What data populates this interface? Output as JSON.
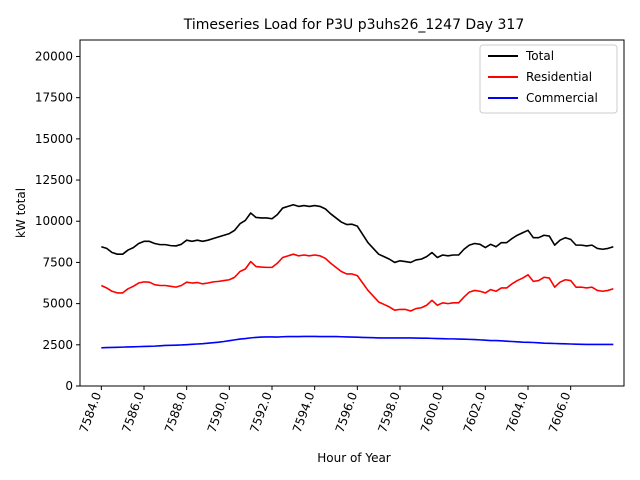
{
  "chart_data": {
    "type": "line",
    "title": "Timeseries Load for P3U p3uhs26_1247  Day 317",
    "xlabel": "Hour of Year",
    "ylabel": "kW total",
    "xlim": [
      7583,
      7608.5
    ],
    "ylim": [
      0,
      21000
    ],
    "xticks": [
      7584,
      7586,
      7588,
      7590,
      7592,
      7594,
      7596,
      7598,
      7600,
      7602,
      7604,
      7606
    ],
    "xtick_labels": [
      "7584.0",
      "7586.0",
      "7588.0",
      "7590.0",
      "7592.0",
      "7594.0",
      "7596.0",
      "7598.0",
      "7600.0",
      "7602.0",
      "7604.0",
      "7606.0"
    ],
    "yticks": [
      0,
      2500,
      5000,
      7500,
      10000,
      12500,
      15000,
      17500,
      20000
    ],
    "ytick_labels": [
      "0",
      "2500",
      "5000",
      "7500",
      "10000",
      "12500",
      "15000",
      "17500",
      "20000"
    ],
    "legend_position": "top-right",
    "x_start": 7584,
    "x_step": 0.25,
    "series": [
      {
        "name": "Total",
        "color": "#000000",
        "values": [
          8450,
          8350,
          8100,
          8000,
          8000,
          8250,
          8400,
          8650,
          8780,
          8780,
          8650,
          8580,
          8580,
          8520,
          8500,
          8600,
          8850,
          8780,
          8850,
          8780,
          8850,
          8950,
          9050,
          9150,
          9250,
          9450,
          9850,
          10050,
          10500,
          10230,
          10200,
          10200,
          10150,
          10400,
          10800,
          10900,
          11000,
          10900,
          10950,
          10900,
          10950,
          10900,
          10750,
          10450,
          10200,
          9950,
          9800,
          9820,
          9700,
          9200,
          8700,
          8350,
          8000,
          7850,
          7700,
          7500,
          7600,
          7550,
          7500,
          7650,
          7700,
          7850,
          8100,
          7800,
          7950,
          7900,
          7950,
          7950,
          8300,
          8550,
          8650,
          8600,
          8400,
          8600,
          8450,
          8700,
          8700,
          8950,
          9150,
          9300,
          9450,
          9000,
          9000,
          9150,
          9100,
          8550,
          8850,
          9000,
          8900,
          8550,
          8550,
          8500,
          8550,
          8350,
          8300,
          8350,
          8450
        ],
        "dx": [
          0
        ]
      },
      {
        "name": "Residential",
        "color": "#ff0000",
        "values": [
          6100,
          5950,
          5750,
          5650,
          5650,
          5900,
          6050,
          6250,
          6320,
          6300,
          6150,
          6100,
          6100,
          6050,
          6000,
          6100,
          6300,
          6250,
          6280,
          6200,
          6250,
          6320,
          6350,
          6400,
          6450,
          6600,
          6950,
          7100,
          7550,
          7250,
          7220,
          7200,
          7200,
          7450,
          7800,
          7900,
          8000,
          7900,
          7950,
          7900,
          7950,
          7900,
          7750,
          7450,
          7200,
          6950,
          6800,
          6800,
          6700,
          6250,
          5800,
          5450,
          5100,
          4950,
          4800,
          4600,
          4650,
          4650,
          4550,
          4700,
          4750,
          4900,
          5200,
          4900,
          5050,
          5000,
          5050,
          5050,
          5400,
          5700,
          5800,
          5750,
          5650,
          5850,
          5750,
          5950,
          5950,
          6200,
          6400,
          6550,
          6750,
          6350,
          6400,
          6600,
          6550,
          6000,
          6300,
          6450,
          6400,
          6000,
          6000,
          5950,
          6000,
          5800,
          5750,
          5800,
          5900
        ],
        "dx": [
          0
        ]
      },
      {
        "name": "Commercial",
        "color": "#0000ff",
        "values": [
          2320,
          2330,
          2340,
          2350,
          2360,
          2370,
          2380,
          2390,
          2400,
          2410,
          2420,
          2440,
          2460,
          2470,
          2480,
          2490,
          2510,
          2530,
          2550,
          2570,
          2600,
          2630,
          2660,
          2700,
          2750,
          2800,
          2850,
          2880,
          2920,
          2950,
          2970,
          2980,
          2980,
          2970,
          2990,
          3000,
          3000,
          3000,
          3010,
          3010,
          3010,
          3000,
          3000,
          3000,
          3000,
          2990,
          2980,
          2970,
          2960,
          2950,
          2940,
          2930,
          2920,
          2920,
          2920,
          2920,
          2920,
          2920,
          2920,
          2910,
          2900,
          2900,
          2890,
          2880,
          2870,
          2860,
          2860,
          2850,
          2840,
          2830,
          2820,
          2800,
          2780,
          2760,
          2760,
          2740,
          2720,
          2700,
          2680,
          2660,
          2650,
          2640,
          2620,
          2600,
          2590,
          2580,
          2570,
          2560,
          2550,
          2540,
          2530,
          2520,
          2520,
          2520,
          2520,
          2520,
          2520
        ]
      }
    ]
  }
}
